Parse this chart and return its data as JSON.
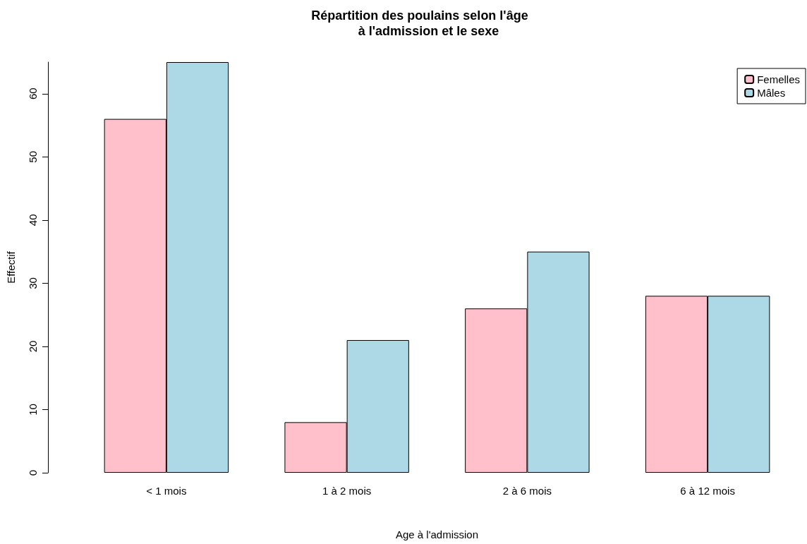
{
  "chart_data": {
    "type": "bar",
    "title": "Répartition des poulains selon l'âge\n     à l'admission et le sexe",
    "xlabel": "Age à l'admission",
    "ylabel": "Effectif",
    "categories": [
      "< 1 mois",
      "1 à 2 mois",
      "2 à 6 mois",
      "6 à 12 mois"
    ],
    "series": [
      {
        "name": "Femelles",
        "color": "#ffc0cb",
        "values": [
          56,
          8,
          26,
          28
        ]
      },
      {
        "name": "Mâles",
        "color": "#add8e6",
        "values": [
          65,
          21,
          35,
          28
        ]
      }
    ],
    "ylim": [
      0,
      65
    ],
    "yticks": [
      0,
      10,
      20,
      30,
      40,
      50,
      60
    ],
    "grid": false,
    "legend": "top right"
  }
}
